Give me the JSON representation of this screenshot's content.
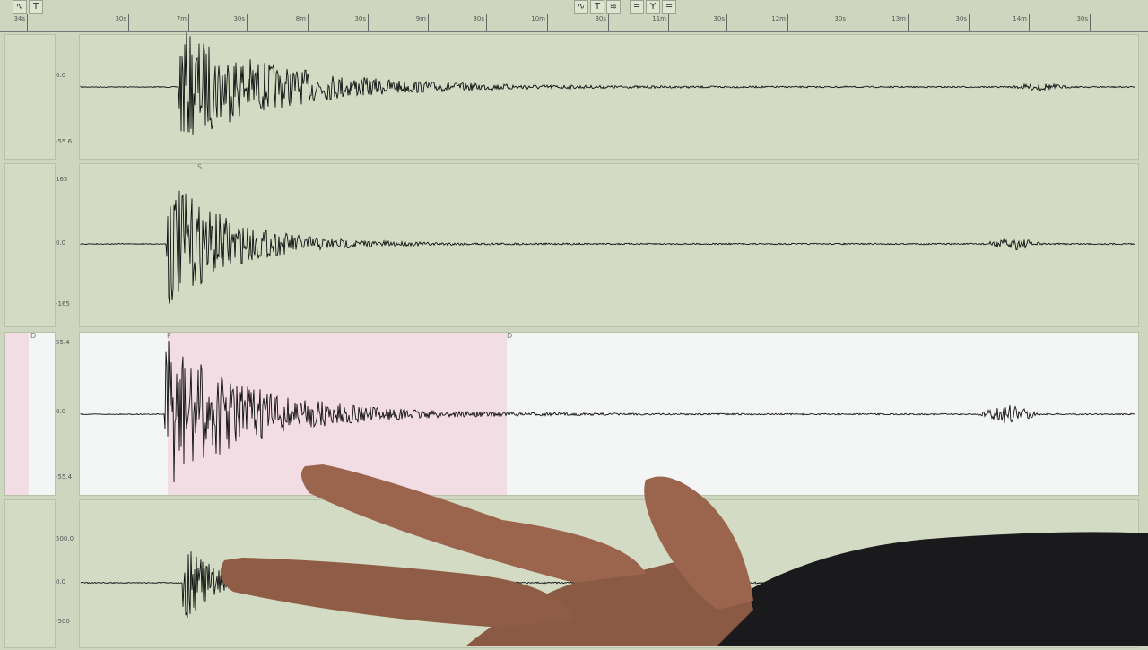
{
  "toolbar": {
    "left_buttons": [
      "∿",
      "T"
    ],
    "center_buttons": [
      "∿",
      "T",
      "≋",
      "═",
      "Y",
      "═"
    ]
  },
  "ruler": {
    "labels": [
      "34s",
      "30s",
      "7m",
      "30s",
      "8m",
      "30s",
      "9m",
      "30s",
      "10m",
      "30s",
      "11m",
      "30s",
      "12m",
      "30s",
      "13m",
      "30s",
      "14m",
      "30s"
    ]
  },
  "channels": [
    {
      "top_label": "",
      "zero_label": "0.0",
      "bottom_label": "-55.6",
      "highlighted": false
    },
    {
      "top_label": "165",
      "zero_label": "0.0",
      "bottom_label": "-165",
      "phase_marker": "S",
      "highlighted": false
    },
    {
      "top_label": "55.4",
      "zero_label": "0.0",
      "bottom_label": "-55.4",
      "phase_marker": "P",
      "window_markers": [
        "D",
        "D"
      ],
      "highlighted": true
    },
    {
      "top_label": "500.0",
      "zero_label": "0.0",
      "bottom_label": "-500",
      "highlighted": false
    }
  ],
  "colors": {
    "screen": "#d3dbc4",
    "selected_plot": "#f4f5f5",
    "selection_window": "#f1dde3",
    "trace": "#111111"
  }
}
